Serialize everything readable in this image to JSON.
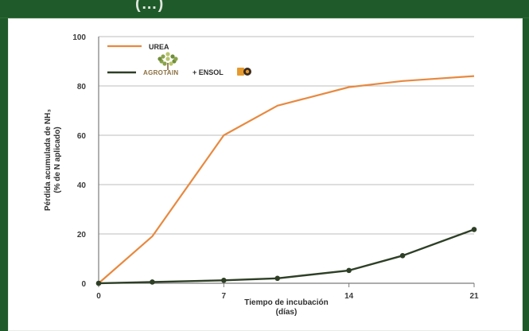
{
  "header": {
    "title": "(…)"
  },
  "chart_data": {
    "type": "line",
    "title": "",
    "xlabel": "Tiempo de incubación",
    "xlabel2": "(días)",
    "ylabel": "Pérdida acumulada de NH₃",
    "ylabel2": "(% de N aplicado)",
    "xlim": [
      0,
      21
    ],
    "ylim": [
      0,
      100
    ],
    "x_ticks": [
      "0",
      "7",
      "14",
      "21"
    ],
    "y_ticks": [
      "0",
      "20",
      "40",
      "60",
      "80",
      "100"
    ],
    "grid": true,
    "legend": {
      "position": "top-left",
      "urea_label": "UREA",
      "agro_brand": "AGROTAIN",
      "plus_ensol": "+ ENSOL"
    },
    "series": [
      {
        "name": "UREA",
        "color": "#e8893f",
        "x": [
          0,
          3,
          7,
          10,
          14,
          17,
          21
        ],
        "y": [
          0,
          19,
          60,
          72,
          79.5,
          82,
          84
        ],
        "markers": false
      },
      {
        "name": "AGROTAIN + ENSOL",
        "color": "#2e3f26",
        "x": [
          0,
          3,
          7,
          10,
          14,
          17,
          21
        ],
        "y": [
          0,
          0.5,
          1.2,
          2,
          5.2,
          11.2,
          21.8
        ],
        "markers": true
      }
    ]
  }
}
